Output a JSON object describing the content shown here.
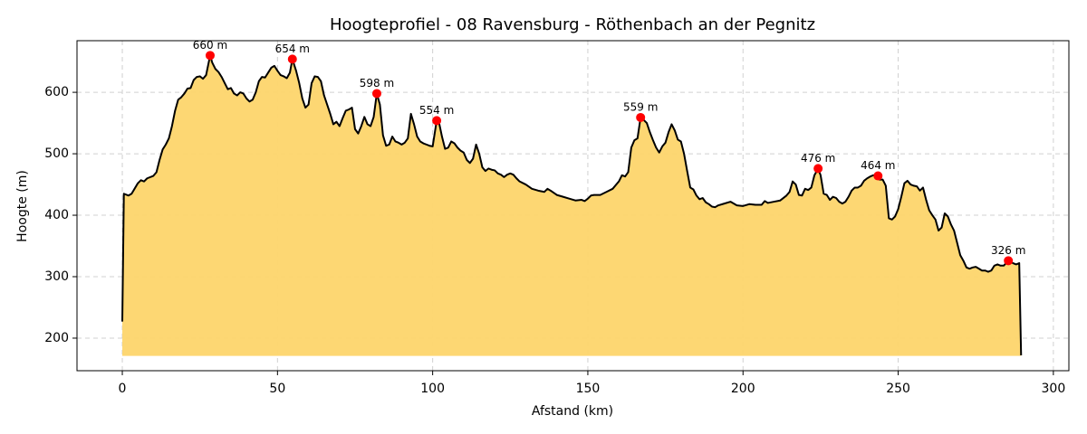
{
  "chart_data": {
    "type": "area",
    "title": "Hoogteprofiel - 08 Ravensburg - Röthenbach an der Pegnitz",
    "xlabel": "Afstand (km)",
    "ylabel": "Hoogte (m)",
    "x": [
      0,
      0.5,
      2,
      3,
      5,
      6,
      7,
      8,
      10,
      11,
      12,
      13,
      14,
      15,
      16,
      17,
      18,
      19,
      20,
      21,
      22,
      23,
      24,
      25,
      26,
      27,
      28.3,
      29,
      30,
      31,
      32,
      33,
      34,
      35,
      36,
      37,
      38,
      39,
      40,
      41,
      42,
      43,
      44,
      45,
      46,
      47,
      48,
      49,
      50,
      51,
      52,
      53,
      54,
      54.8,
      56,
      57,
      58,
      59,
      60,
      61,
      62,
      63,
      64,
      65,
      66,
      67,
      68,
      69,
      70,
      71,
      72,
      73,
      74,
      75,
      76,
      77,
      78,
      79,
      80,
      81,
      82,
      83,
      84,
      85,
      86,
      87,
      88,
      89,
      90,
      91,
      92,
      93,
      94,
      95,
      96,
      97,
      98,
      99,
      100,
      101.3,
      102,
      103,
      104,
      105,
      106,
      107,
      108,
      109,
      110,
      111,
      112,
      113,
      114,
      115,
      116,
      117,
      118,
      119,
      120,
      121,
      122,
      123,
      124,
      125,
      126,
      127,
      128,
      130,
      132,
      134,
      136,
      137,
      138,
      140,
      142,
      144,
      146,
      148,
      149,
      150,
      151,
      152,
      154,
      156,
      158,
      160,
      161,
      162,
      163,
      164,
      165,
      166,
      167,
      168,
      169,
      170,
      171,
      172,
      173,
      174,
      175,
      176,
      177,
      178,
      179,
      180,
      181,
      182,
      183,
      184,
      185,
      186,
      187,
      188,
      189,
      190,
      191,
      192,
      194,
      196,
      198,
      200,
      202,
      204,
      206,
      207,
      208,
      210,
      212,
      214,
      215,
      216,
      217,
      218,
      219,
      220,
      221,
      222,
      223,
      224.2,
      225,
      226,
      227,
      228,
      229,
      230,
      231,
      232,
      233,
      234,
      235,
      236,
      237,
      238,
      239,
      240,
      241,
      242,
      243.5,
      244,
      245,
      246,
      247,
      248,
      249,
      250,
      251,
      252,
      253,
      254,
      255,
      256,
      257,
      258,
      259,
      260,
      261,
      262,
      263,
      264,
      265,
      266,
      267,
      268,
      269,
      270,
      271,
      272,
      273,
      274,
      275,
      276,
      277,
      278,
      279,
      280,
      281,
      282,
      283,
      284,
      285.5,
      287,
      288,
      289,
      289.6
    ],
    "series": [
      {
        "color": "#000000",
        "fill": "#fdd56b",
        "values": [
          227,
          435,
          432,
          435,
          452,
          457,
          455,
          460,
          464,
          470,
          490,
          507,
          515,
          525,
          545,
          570,
          588,
          592,
          598,
          606,
          607,
          620,
          625,
          626,
          622,
          628,
          660,
          648,
          638,
          633,
          625,
          615,
          605,
          607,
          598,
          595,
          600,
          598,
          590,
          585,
          588,
          600,
          618,
          625,
          624,
          632,
          640,
          643,
          635,
          628,
          626,
          623,
          632,
          654,
          635,
          615,
          590,
          575,
          580,
          615,
          626,
          625,
          618,
          595,
          580,
          565,
          548,
          552,
          545,
          558,
          570,
          572,
          575,
          540,
          533,
          545,
          560,
          548,
          545,
          560,
          598,
          580,
          530,
          513,
          515,
          528,
          520,
          518,
          515,
          518,
          525,
          565,
          548,
          528,
          520,
          517,
          515,
          513,
          512,
          554,
          552,
          528,
          508,
          510,
          520,
          517,
          510,
          505,
          502,
          490,
          485,
          492,
          515,
          500,
          478,
          472,
          476,
          474,
          473,
          468,
          466,
          462,
          466,
          468,
          466,
          460,
          455,
          450,
          443,
          440,
          438,
          443,
          440,
          433,
          430,
          427,
          424,
          425,
          423,
          427,
          432,
          433,
          433,
          438,
          443,
          455,
          465,
          463,
          470,
          510,
          522,
          525,
          559,
          555,
          550,
          535,
          522,
          510,
          502,
          512,
          518,
          535,
          548,
          538,
          523,
          520,
          500,
          472,
          445,
          442,
          432,
          426,
          428,
          421,
          418,
          414,
          413,
          416,
          419,
          422,
          416,
          415,
          418,
          417,
          417,
          423,
          420,
          422,
          424,
          432,
          438,
          455,
          450,
          433,
          432,
          443,
          441,
          445,
          465,
          476,
          465,
          435,
          433,
          425,
          430,
          428,
          422,
          419,
          422,
          430,
          440,
          445,
          445,
          448,
          456,
          460,
          463,
          465,
          464,
          458,
          458,
          448,
          395,
          393,
          398,
          410,
          430,
          452,
          456,
          450,
          448,
          447,
          440,
          445,
          425,
          408,
          400,
          393,
          375,
          380,
          403,
          398,
          385,
          375,
          355,
          335,
          326,
          315,
          313,
          315,
          316,
          313,
          310,
          310,
          308,
          310,
          318,
          320,
          318,
          318,
          326,
          322,
          320,
          322,
          172
        ]
      }
    ],
    "fill_baseline": 171,
    "markers": {
      "color": "#ff0000",
      "x": [
        28.3,
        54.8,
        82,
        101.3,
        167,
        224.2,
        243.5,
        285.5
      ],
      "values": [
        660,
        654,
        598,
        554,
        559,
        476,
        464,
        326
      ],
      "value_labels": [
        "660 m",
        "654 m",
        "598 m",
        "554 m",
        "559 m",
        "476 m",
        "464 m",
        "326 m"
      ]
    },
    "xlim": [
      -14.6,
      305
    ],
    "ylim": [
      147,
      684
    ],
    "xticks": [
      0,
      50,
      100,
      150,
      200,
      250,
      300
    ],
    "yticks": [
      200,
      300,
      400,
      500,
      600
    ],
    "grid": true
  }
}
